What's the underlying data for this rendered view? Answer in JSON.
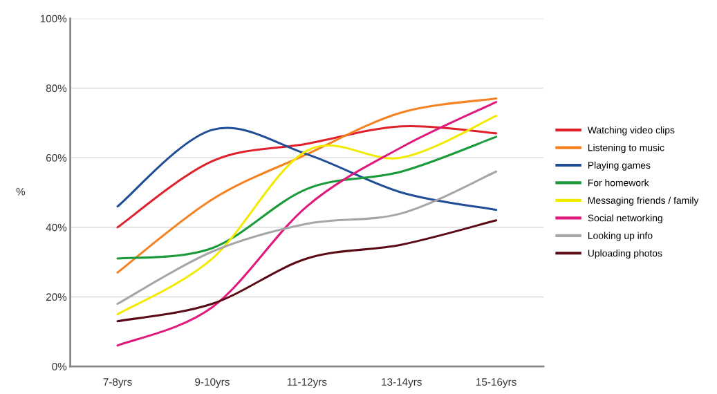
{
  "chart_data": {
    "type": "line",
    "ylabel": "%",
    "categories": [
      "7-8yrs",
      "9-10yrs",
      "11-12yrs",
      "13-14yrs",
      "15-16yrs"
    ],
    "ylim": [
      0,
      100
    ],
    "yticks": [
      {
        "value": 0,
        "label": "0%"
      },
      {
        "value": 20,
        "label": "20%"
      },
      {
        "value": 40,
        "label": "40%"
      },
      {
        "value": 60,
        "label": "60%"
      },
      {
        "value": 80,
        "label": "80%"
      },
      {
        "value": 100,
        "label": "100%"
      }
    ],
    "grid": "y",
    "legend": "right",
    "marker": "none",
    "line_style": "solid",
    "series": [
      {
        "name": "Watching video clips",
        "color": "#e0202a",
        "values": [
          40,
          59,
          64,
          69,
          67
        ]
      },
      {
        "name": "Listening to music",
        "color": "#f58220",
        "values": [
          27,
          48,
          61,
          73,
          77
        ]
      },
      {
        "name": "Playing games",
        "color": "#1f4e96",
        "values": [
          46,
          68,
          61,
          50,
          45
        ]
      },
      {
        "name": "For homework",
        "color": "#1a9a3a",
        "values": [
          31,
          34,
          51,
          56,
          66
        ]
      },
      {
        "name": "Messaging friends / family",
        "color": "#f2ea00",
        "values": [
          15,
          31,
          62,
          60,
          72
        ]
      },
      {
        "name": "Social networking",
        "color": "#e0197d",
        "values": [
          6,
          17,
          46,
          63,
          76
        ]
      },
      {
        "name": "Looking up info",
        "color": "#a6a6a6",
        "values": [
          18,
          33,
          41,
          44,
          56
        ]
      },
      {
        "name": "Uploading photos",
        "color": "#5a0a14",
        "values": [
          13,
          18,
          31,
          35,
          42
        ]
      }
    ]
  }
}
